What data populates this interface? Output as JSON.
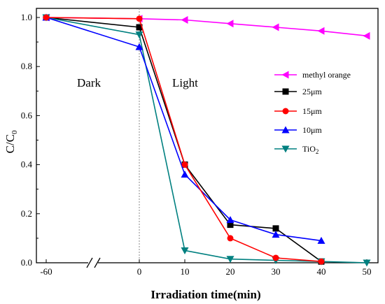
{
  "chart_data": {
    "type": "line",
    "xlabel": "Irradiation time(min)",
    "ylabel_main": "C/C",
    "ylabel_sub": "0",
    "x_ticks": [
      "-60",
      "0",
      "10",
      "20",
      "30",
      "40",
      "50"
    ],
    "y_ticks": [
      "0.0",
      "0.2",
      "0.4",
      "0.6",
      "0.8",
      "1.0"
    ],
    "xlim": [
      -60,
      50
    ],
    "ylim": [
      0,
      1.0
    ],
    "x_axis_break": true,
    "annotations": [
      "Dark",
      "Light"
    ],
    "legend_position": "right",
    "series": [
      {
        "name": "methyl orange",
        "color": "#ff00ff",
        "marker": "triangle-left",
        "x": [
          -60,
          0,
          10,
          20,
          30,
          40,
          50
        ],
        "y": [
          1.0,
          0.995,
          0.99,
          0.975,
          0.96,
          0.945,
          0.925
        ]
      },
      {
        "name": "25μm",
        "color": "#000000",
        "marker": "square",
        "x": [
          -60,
          0,
          10,
          20,
          30,
          40
        ],
        "y": [
          1.0,
          0.96,
          0.4,
          0.155,
          0.14,
          0.005
        ]
      },
      {
        "name": "15μm",
        "color": "#ff0000",
        "marker": "circle",
        "x": [
          -60,
          0,
          10,
          20,
          30,
          40
        ],
        "y": [
          1.0,
          0.995,
          0.4,
          0.1,
          0.02,
          0.005
        ]
      },
      {
        "name": "10μm",
        "color": "#0000ff",
        "marker": "triangle-up",
        "x": [
          -60,
          0,
          10,
          20,
          30,
          40
        ],
        "y": [
          1.0,
          0.88,
          0.36,
          0.175,
          0.115,
          0.09
        ]
      },
      {
        "name": "TiO",
        "name_sub": "2",
        "color": "#008080",
        "marker": "triangle-down",
        "x": [
          -60,
          0,
          10,
          20,
          30,
          40,
          50
        ],
        "y": [
          1.0,
          0.93,
          0.05,
          0.015,
          0.01,
          0.005,
          0.0
        ]
      }
    ]
  }
}
